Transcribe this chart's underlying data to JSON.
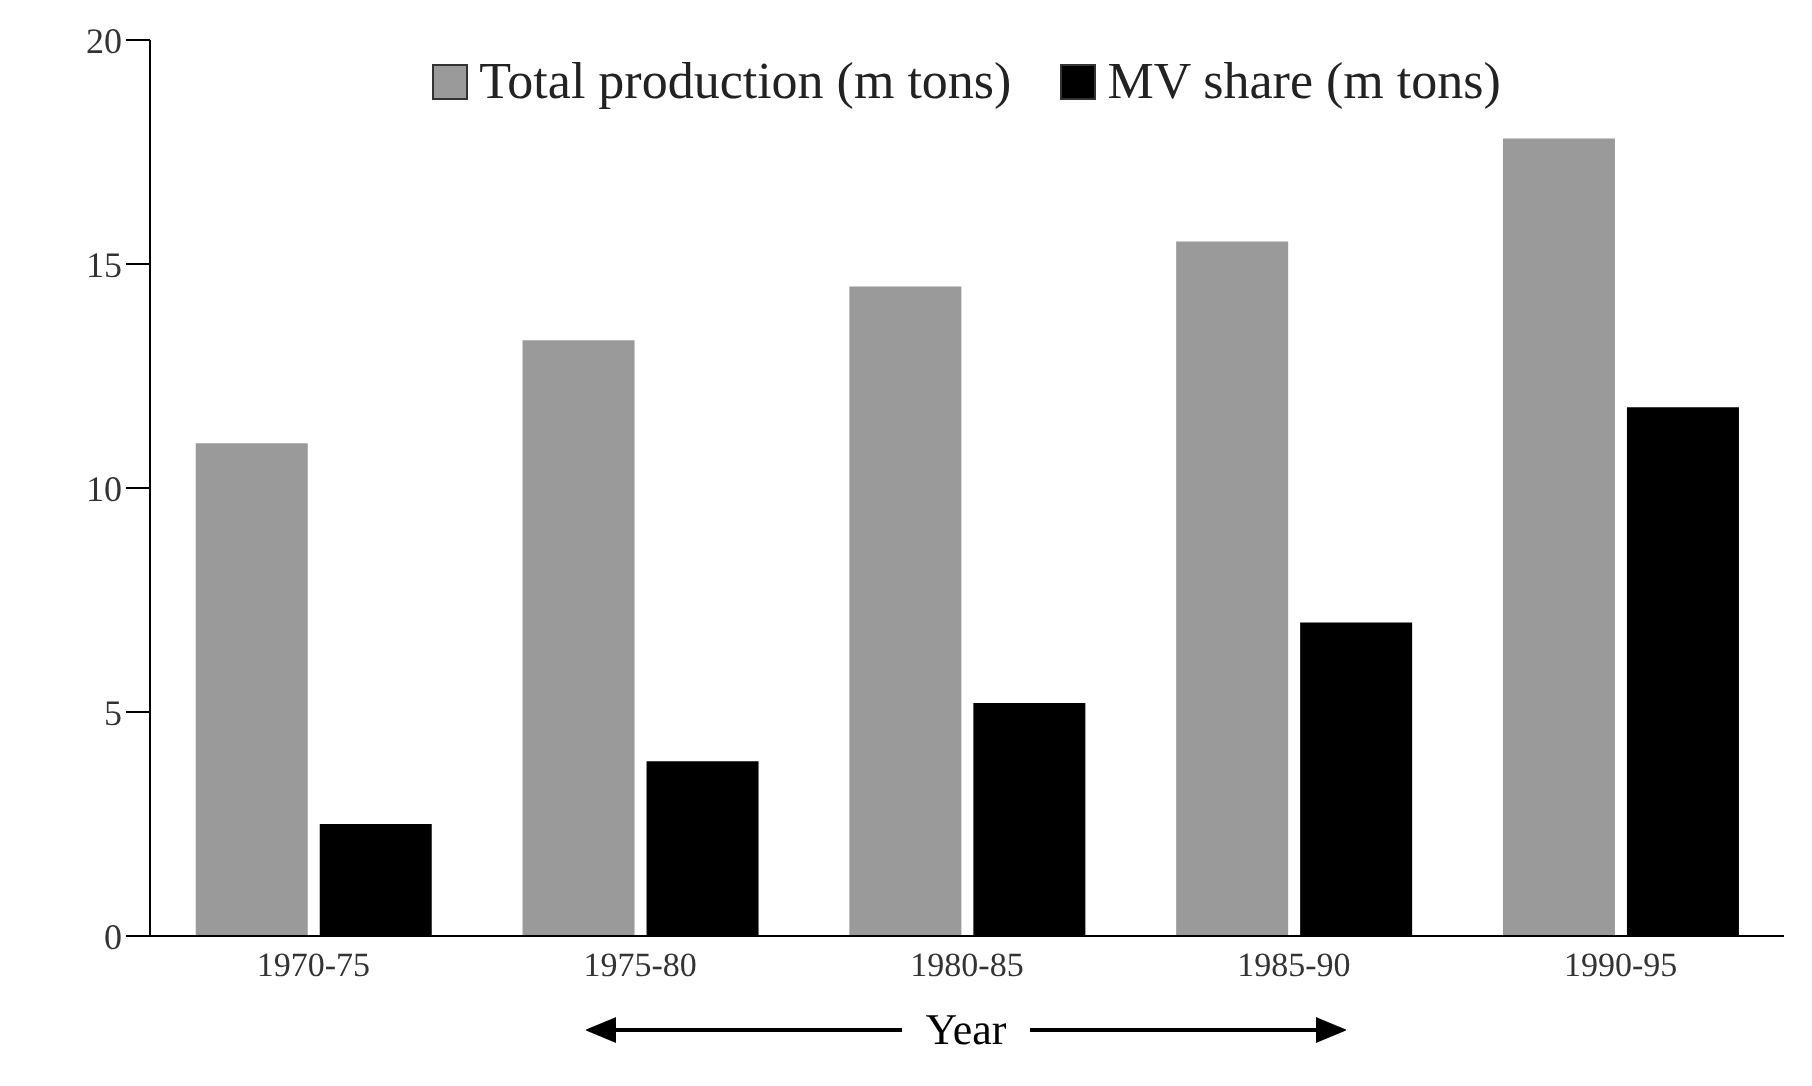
{
  "chart_data": {
    "type": "bar",
    "xlabel": "Year",
    "categories": [
      "1970-75",
      "1975-80",
      "1980-85",
      "1985-90",
      "1990-95"
    ],
    "series": [
      {
        "name": "Total production (m tons)",
        "color": "#9a9a9a",
        "values": [
          11,
          13.3,
          14.5,
          15.5,
          17.8
        ]
      },
      {
        "name": "MV share (m tons)",
        "color": "#000000",
        "values": [
          2.5,
          3.9,
          5.2,
          7,
          11.8
        ]
      }
    ],
    "ylim": [
      0,
      20
    ],
    "yticks": [
      0,
      5,
      10,
      15,
      20
    ],
    "grid": false,
    "legend": "top"
  }
}
